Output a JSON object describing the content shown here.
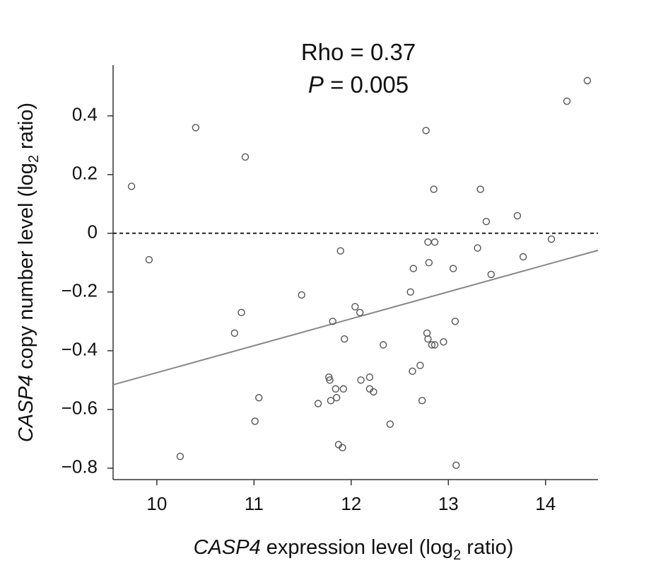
{
  "chart_data": {
    "type": "scatter",
    "annotations": [
      [
        {
          "text": "Rho = 0.37",
          "style": "normal"
        }
      ],
      [
        {
          "text": "P",
          "style": "italic"
        },
        {
          "text": " = 0.005",
          "style": "normal"
        }
      ]
    ],
    "x_label": [
      {
        "text": "CASP4",
        "style": "italic"
      },
      {
        "text": " expression level (log",
        "style": "normal"
      },
      {
        "text": "2",
        "style": "sub"
      },
      {
        "text": " ratio)",
        "style": "normal"
      }
    ],
    "y_label": [
      {
        "text": "CASP4",
        "style": "italic"
      },
      {
        "text": " copy number level (log",
        "style": "normal"
      },
      {
        "text": "2",
        "style": "sub"
      },
      {
        "text": " ratio)",
        "style": "normal"
      }
    ],
    "xlim": [
      9.55,
      14.54
    ],
    "ylim": [
      -0.839,
      0.573
    ],
    "xticks": [
      10,
      11,
      12,
      13,
      14
    ],
    "yticks": [
      0.4,
      0.2,
      0,
      {
        "value": -0.2,
        "label": "−0.2"
      },
      {
        "value": -0.4,
        "label": "−0.4"
      },
      {
        "value": -0.6,
        "label": "−0.6"
      },
      {
        "value": -0.8,
        "label": "−0.8"
      }
    ],
    "reference_line": 0,
    "color": "#555555",
    "x": [
      9.74,
      9.92,
      10.4,
      10.91,
      10.24,
      10.8,
      10.87,
      11.05,
      11.01,
      11.49,
      11.66,
      11.77,
      11.78,
      11.81,
      11.79,
      11.84,
      11.85,
      11.87,
      11.91,
      11.92,
      11.89,
      11.93,
      12.04,
      12.09,
      12.1,
      12.19,
      12.19,
      12.23,
      12.33,
      12.4,
      12.61,
      12.64,
      12.63,
      12.71,
      12.73,
      12.77,
      12.78,
      12.79,
      12.79,
      12.8,
      12.83,
      12.85,
      12.86,
      12.86,
      12.95,
      13.05,
      13.07,
      13.08,
      13.3,
      13.33,
      13.39,
      13.44,
      13.71,
      13.77,
      14.06,
      14.22,
      14.43
    ],
    "values": [
      0.16,
      -0.09,
      0.36,
      0.26,
      -0.76,
      -0.34,
      -0.27,
      -0.56,
      -0.64,
      -0.21,
      -0.58,
      -0.49,
      -0.5,
      -0.3,
      -0.57,
      -0.53,
      -0.56,
      -0.72,
      -0.73,
      -0.53,
      -0.06,
      -0.36,
      -0.25,
      -0.27,
      -0.5,
      -0.49,
      -0.53,
      -0.54,
      -0.38,
      -0.65,
      -0.2,
      -0.12,
      -0.47,
      -0.45,
      -0.57,
      0.35,
      -0.34,
      -0.36,
      -0.03,
      -0.1,
      -0.38,
      0.15,
      -0.03,
      -0.38,
      -0.37,
      -0.12,
      -0.3,
      -0.79,
      -0.05,
      0.15,
      0.04,
      -0.14,
      0.06,
      -0.08,
      -0.02,
      0.45,
      0.52
    ],
    "fit_line": {
      "x": [
        9.55,
        14.54
      ],
      "values": [
        -0.516,
        -0.058
      ],
      "color": "#888888"
    }
  }
}
